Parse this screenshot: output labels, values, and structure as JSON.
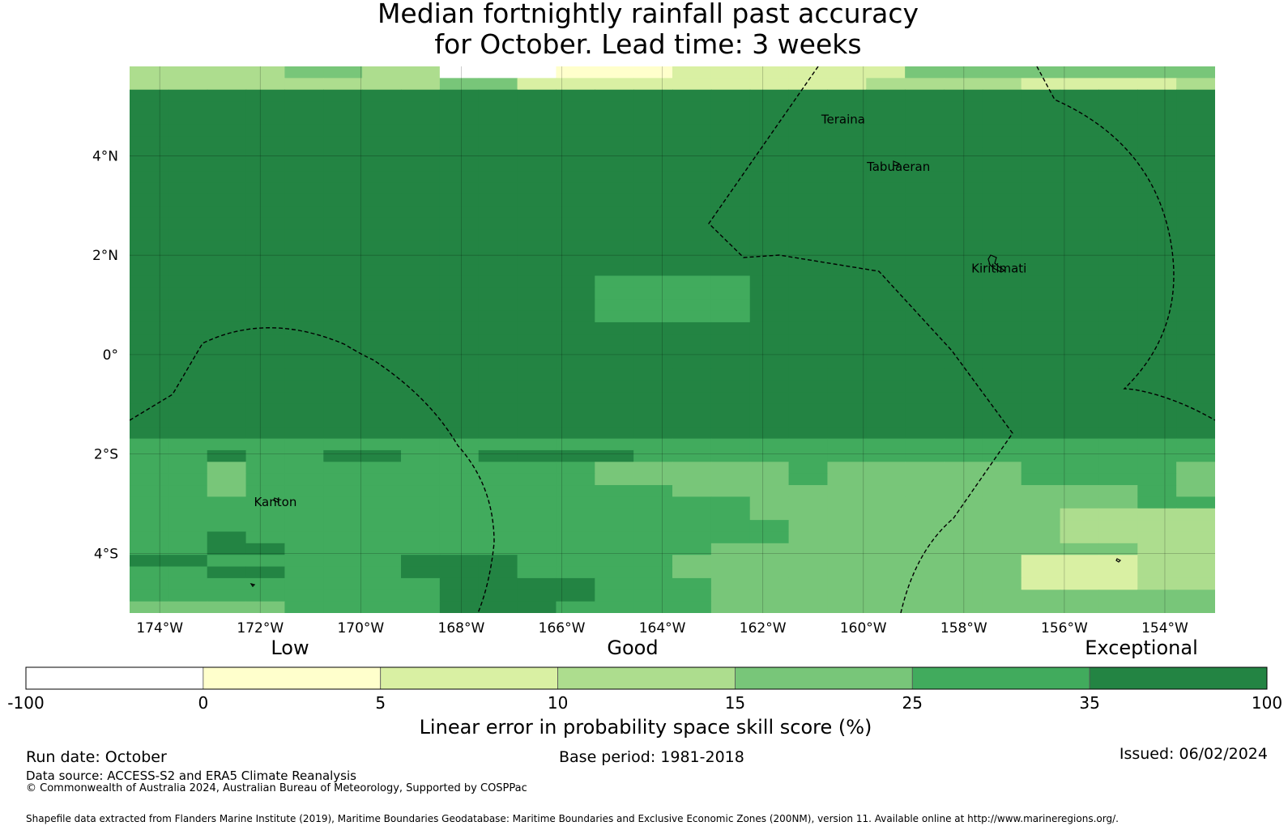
{
  "title": {
    "line1": "Median fortnightly rainfall past accuracy",
    "line2": "for October. Lead time: 3 weeks"
  },
  "map": {
    "lon_range": [
      -174.6,
      -153.0
    ],
    "lat_range": [
      -5.2,
      5.8
    ],
    "grid_cell_deg": 0.833,
    "lat_ticks": [
      {
        "value": 4,
        "label": "4°N"
      },
      {
        "value": 2,
        "label": "2°N"
      },
      {
        "value": 0,
        "label": "0°"
      },
      {
        "value": -2,
        "label": "2°S"
      },
      {
        "value": -4,
        "label": "4°S"
      }
    ],
    "lon_ticks": [
      {
        "value": -174,
        "label": "174°W"
      },
      {
        "value": -172,
        "label": "172°W"
      },
      {
        "value": -170,
        "label": "170°W"
      },
      {
        "value": -168,
        "label": "168°W"
      },
      {
        "value": -166,
        "label": "166°W"
      },
      {
        "value": -164,
        "label": "164°W"
      },
      {
        "value": -162,
        "label": "162°W"
      },
      {
        "value": -160,
        "label": "160°W"
      },
      {
        "value": -158,
        "label": "158°W"
      },
      {
        "value": -156,
        "label": "156°W"
      },
      {
        "value": -154,
        "label": "154°W"
      }
    ],
    "places": [
      {
        "name": "Teraina",
        "lon": -160.4,
        "lat": 4.65
      },
      {
        "name": "Tabuaeran",
        "lon": -159.3,
        "lat": 3.7
      },
      {
        "name": "Kiritimati",
        "lon": -157.3,
        "lat": 1.65
      },
      {
        "name": "Kanton",
        "lon": -171.7,
        "lat": -3.05
      }
    ],
    "score_grid": [
      "3333443300011122222244444444",
      "3333333344222222222333322223",
      "6666666666666666666666666666",
      "6666666666666666666666666666",
      "6666666666666666666666666666",
      "6666666666666666666666666666",
      "6666666666666666666666666666",
      "6666666666666666666666666666",
      "6666666666666666666666666666",
      "6666666666666666666666666666",
      "6666666666666666666666666666",
      "6666666666666666666666666666",
      "6666666666666666666666666666",
      "6666666666666666666666666666",
      "6666666666666666666666666666",
      "6666666666666666666666666666",
      "6666666666666666666666666666",
      "6666666666666666666666666666",
      "6666666666665555666666666666",
      "6666666666665555666666666666",
      "6666666666665555666666666666",
      "6666666666665555666666666666",
      "6666666666666666666666666666",
      "6666666666666666666666666666",
      "6666666666666666666666666666",
      "6666666666666666666666666666",
      "6666666666666666666666666666",
      "6666666666666666666666666666",
      "6666666666666666666666666666",
      "6666666666666666666666666666",
      "6666666666666666666666666666",
      "6666666666666666666666666666",
      "5555555555555555555555555555",
      "5565566556666555555555555555",
      "5545555555554444454444455554",
      "5545555555554444454444455554",
      "5545555555555544444444444454",
      "5555555555555555444444444455",
      "5555555555555555444444443333",
      "5555555555555555544444443333",
      "5565555555555555544444443333",
      "5566555555555554444444444433",
      "6655555666555544444444422233",
      "5566555666555544444444422233",
      "5555555566665554444444422233",
      "5555555566665554444444444444",
      "4444555566655554444444444444"
    ]
  },
  "legend": {
    "category_low": "Low",
    "category_good": "Good",
    "category_exceptional": "Exceptional",
    "tick_labels": [
      "-100",
      "0",
      "5",
      "10",
      "15",
      "25",
      "35",
      "100"
    ],
    "colors": [
      "#ffffff",
      "#ffffcc",
      "#d9f0a3",
      "#addd8e",
      "#78c679",
      "#41ab5d",
      "#238443"
    ],
    "axis_label": "Linear error in probability space skill score (%)"
  },
  "footer": {
    "run_date": "Run date: October",
    "base_period": "Base period: 1981-2018",
    "issued": "Issued: 06/02/2024",
    "data_source": "Data source: ACCESS-S2 and ERA5 Climate Reanalysis",
    "copyright": "© Commonwealth of Australia 2024, Australian Bureau of Meteorology, Supported by COSPPac",
    "shapefile": "Shapefile data extracted from Flanders Marine Institute (2019), Maritime Boundaries Geodatabase: Maritime Boundaries and Exclusive Economic Zones (200NM), version 11. Available online at http://www.marineregions.org/."
  }
}
